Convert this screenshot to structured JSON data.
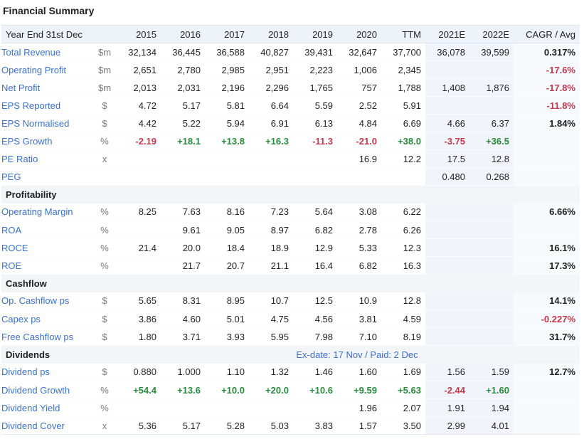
{
  "title": "Financial Summary",
  "header": [
    "Year End 31st Dec",
    "",
    "2015",
    "2016",
    "2017",
    "2018",
    "2019",
    "2020",
    "TTM",
    "2021E",
    "2022E",
    "CAGR / Avg"
  ],
  "sections": [
    {
      "name": "",
      "rows": [
        {
          "label": "Total Revenue",
          "unit": "$m",
          "values": [
            "32,134",
            "36,445",
            "36,588",
            "40,827",
            "39,431",
            "32,647",
            "37,700",
            "36,078",
            "39,599"
          ],
          "cagr": "0.317%"
        },
        {
          "label": "Operating Profit",
          "unit": "$m",
          "values": [
            "2,651",
            "2,780",
            "2,985",
            "2,951",
            "2,223",
            "1,006",
            "2,345",
            "",
            ""
          ],
          "cagr": "-17.6%"
        },
        {
          "label": "Net Profit",
          "unit": "$m",
          "values": [
            "2,013",
            "2,031",
            "2,196",
            "2,296",
            "1,765",
            "757",
            "1,788",
            "1,408",
            "1,876"
          ],
          "cagr": "-17.8%"
        },
        {
          "label": "EPS Reported",
          "unit": "$",
          "values": [
            "4.72",
            "5.17",
            "5.81",
            "6.64",
            "5.59",
            "2.52",
            "5.91",
            "",
            ""
          ],
          "cagr": "-11.8%"
        },
        {
          "label": "EPS Normalised",
          "unit": "$",
          "values": [
            "4.42",
            "5.22",
            "5.94",
            "6.91",
            "6.13",
            "4.84",
            "6.69",
            "4.66",
            "6.37"
          ],
          "cagr": "1.84%"
        },
        {
          "label": "EPS Growth",
          "unit": "%",
          "values": [
            "-2.19",
            "+18.1",
            "+13.8",
            "+16.3",
            "-11.3",
            "-21.0",
            "+38.0",
            "-3.75",
            "+36.5"
          ],
          "cagr": ""
        },
        {
          "label": "PE Ratio",
          "unit": "x",
          "values": [
            "",
            "",
            "",
            "",
            "",
            "16.9",
            "12.2",
            "17.5",
            "12.8"
          ],
          "cagr": ""
        },
        {
          "label": "PEG",
          "unit": "",
          "values": [
            "",
            "",
            "",
            "",
            "",
            "",
            "",
            "0.480",
            "0.268"
          ],
          "cagr": ""
        }
      ]
    },
    {
      "name": "Profitability",
      "rows": [
        {
          "label": "Operating Margin",
          "unit": "%",
          "values": [
            "8.25",
            "7.63",
            "8.16",
            "7.23",
            "5.64",
            "3.08",
            "6.22",
            "",
            ""
          ],
          "cagr": "6.66%"
        },
        {
          "label": "ROA",
          "unit": "%",
          "values": [
            "",
            "9.61",
            "9.05",
            "8.97",
            "6.82",
            "2.78",
            "6.26",
            "",
            ""
          ],
          "cagr": ""
        },
        {
          "label": "ROCE",
          "unit": "%",
          "values": [
            "21.4",
            "20.0",
            "18.4",
            "18.9",
            "12.9",
            "5.33",
            "12.3",
            "",
            ""
          ],
          "cagr": "16.1%"
        },
        {
          "label": "ROE",
          "unit": "%",
          "values": [
            "",
            "21.7",
            "20.7",
            "21.1",
            "16.4",
            "6.82",
            "16.3",
            "",
            ""
          ],
          "cagr": "17.3%"
        }
      ]
    },
    {
      "name": "Cashflow",
      "rows": [
        {
          "label": "Op. Cashflow ps",
          "unit": "$",
          "values": [
            "5.65",
            "8.31",
            "8.95",
            "10.7",
            "12.5",
            "10.9",
            "12.8",
            "",
            ""
          ],
          "cagr": "14.1%"
        },
        {
          "label": "Capex ps",
          "unit": "$",
          "values": [
            "3.86",
            "4.60",
            "5.01",
            "4.75",
            "4.56",
            "3.81",
            "4.59",
            "",
            ""
          ],
          "cagr": "-0.227%"
        },
        {
          "label": "Free Cashflow ps",
          "unit": "$",
          "values": [
            "1.80",
            "3.71",
            "3.93",
            "5.95",
            "7.98",
            "7.10",
            "8.19",
            "",
            ""
          ],
          "cagr": "31.7%"
        }
      ]
    },
    {
      "name": "Dividends",
      "note": "Ex-date: 17 Nov / Paid: 2 Dec",
      "rows": [
        {
          "label": "Dividend ps",
          "unit": "$",
          "values": [
            "0.880",
            "1.000",
            "1.10",
            "1.32",
            "1.46",
            "1.60",
            "1.69",
            "1.56",
            "1.59"
          ],
          "cagr": "12.7%"
        },
        {
          "label": "Dividend Growth",
          "unit": "%",
          "values": [
            "+54.4",
            "+13.6",
            "+10.0",
            "+20.0",
            "+10.6",
            "+9.59",
            "+5.63",
            "-2.44",
            "+1.60"
          ],
          "cagr": ""
        },
        {
          "label": "Dividend Yield",
          "unit": "%",
          "values": [
            "",
            "",
            "",
            "",
            "",
            "1.96",
            "2.07",
            "1.91",
            "1.94"
          ],
          "cagr": ""
        },
        {
          "label": "Dividend Cover",
          "unit": "x",
          "values": [
            "5.36",
            "5.17",
            "5.28",
            "5.03",
            "3.83",
            "1.57",
            "3.50",
            "2.99",
            "4.01"
          ],
          "cagr": ""
        }
      ]
    }
  ],
  "colors": {
    "positive": "#2b8a3e",
    "negative": "#c0394c",
    "link": "#3b71c7",
    "header_bg": "#eef3fa"
  }
}
